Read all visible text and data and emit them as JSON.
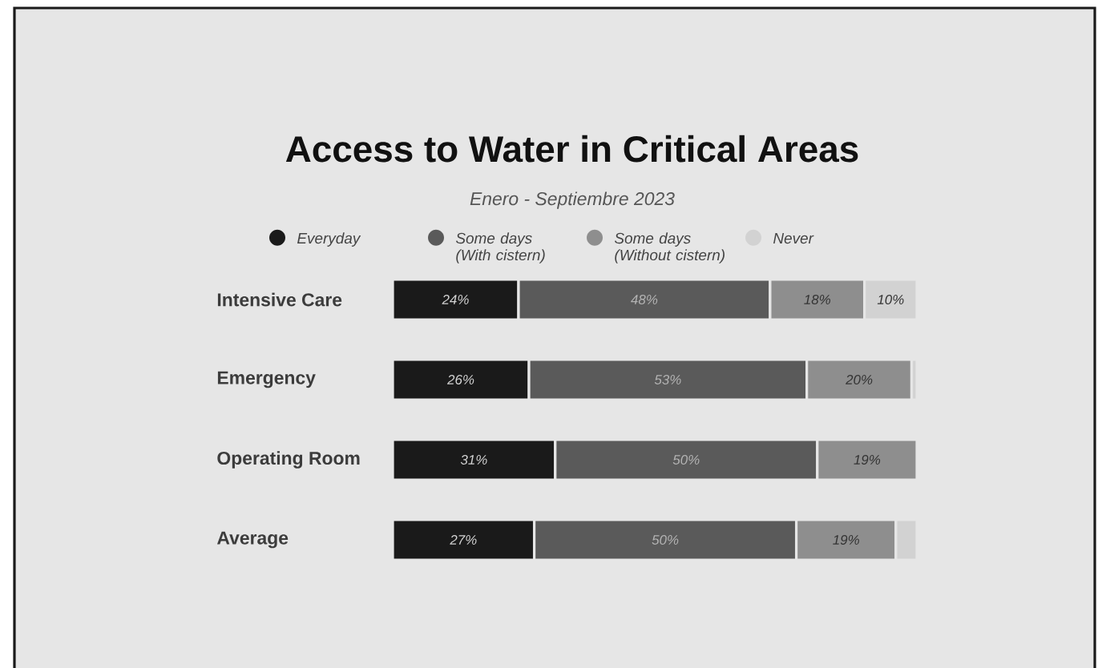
{
  "chart_data": {
    "type": "bar",
    "orientation": "horizontal",
    "stacked": true,
    "title": "Access to Water in Critical Areas",
    "subtitle": "Enero - Septiembre 2023",
    "categories": [
      "Intensive Care",
      "Emergency",
      "Operating Room",
      "Average"
    ],
    "series": [
      {
        "name": "Everyday",
        "color": "#1a1a1a",
        "values": [
          24,
          26,
          31,
          27
        ],
        "value_labels": [
          "24%",
          "26%",
          "31%",
          "27%"
        ]
      },
      {
        "name": "Some days (With cistern)",
        "color": "#5a5a5a",
        "values": [
          48,
          53,
          50,
          50
        ],
        "value_labels": [
          "48%",
          "53%",
          "50%",
          "50%"
        ]
      },
      {
        "name": "Some days (Without cistern)",
        "color": "#8e8e8e",
        "values": [
          18,
          20,
          19,
          19
        ],
        "value_labels": [
          "18%",
          "20%",
          "19%",
          "19%"
        ]
      },
      {
        "name": "Never",
        "color": "#d2d2d2",
        "values": [
          10,
          1,
          0,
          4
        ],
        "value_labels": [
          "10%",
          null,
          null,
          null
        ]
      }
    ],
    "legend": "top",
    "tick_labels": "y"
  }
}
